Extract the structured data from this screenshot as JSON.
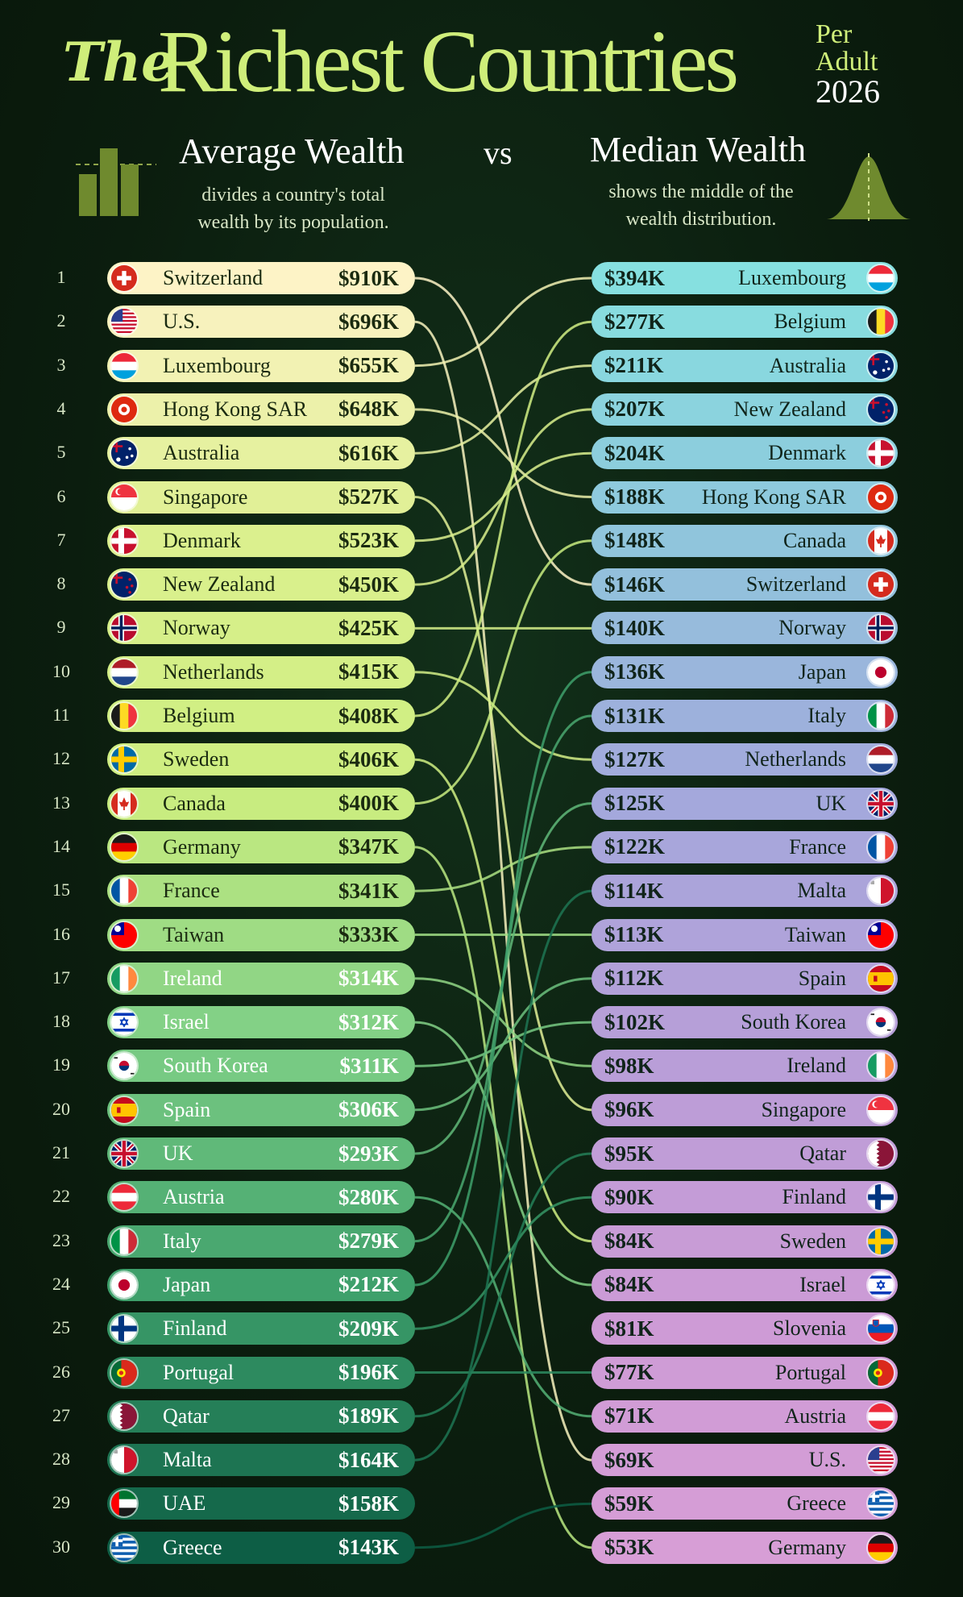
{
  "header": {
    "title_the": "The",
    "title_main": "Richest Countries",
    "title_per": "Per",
    "title_adult": "Adult",
    "title_year": "2026",
    "left_heading": "Average Wealth",
    "left_sub_1": "divides a country's total",
    "left_sub_2": "wealth by its population.",
    "vs": "vs",
    "right_heading": "Median Wealth",
    "right_sub_1": "shows the middle of the",
    "right_sub_2": "wealth distribution."
  },
  "colors": {
    "background": "#0c1e0e",
    "title": "#cfee7a",
    "left_top": "#fdf3c6",
    "left_bottom": "#0d5e45",
    "right_top": "#86e0e0",
    "right_bottom": "#d79ed6"
  },
  "chart_data": {
    "type": "slope",
    "left": {
      "label": "Average Wealth",
      "rows": [
        {
          "rank": "1",
          "country": "Switzerland",
          "value_label": "$910K",
          "value_k": 910,
          "flag": "switzerland"
        },
        {
          "rank": "2",
          "country": "U.S.",
          "value_label": "$696K",
          "value_k": 696,
          "flag": "us"
        },
        {
          "rank": "3",
          "country": "Luxembourg",
          "value_label": "$655K",
          "value_k": 655,
          "flag": "luxembourg"
        },
        {
          "rank": "4",
          "country": "Hong Kong SAR",
          "value_label": "$648K",
          "value_k": 648,
          "flag": "hongkong"
        },
        {
          "rank": "5",
          "country": "Australia",
          "value_label": "$616K",
          "value_k": 616,
          "flag": "australia"
        },
        {
          "rank": "6",
          "country": "Singapore",
          "value_label": "$527K",
          "value_k": 527,
          "flag": "singapore"
        },
        {
          "rank": "7",
          "country": "Denmark",
          "value_label": "$523K",
          "value_k": 523,
          "flag": "denmark"
        },
        {
          "rank": "8",
          "country": "New Zealand",
          "value_label": "$450K",
          "value_k": 450,
          "flag": "newzealand"
        },
        {
          "rank": "9",
          "country": "Norway",
          "value_label": "$425K",
          "value_k": 425,
          "flag": "norway"
        },
        {
          "rank": "10",
          "country": "Netherlands",
          "value_label": "$415K",
          "value_k": 415,
          "flag": "netherlands"
        },
        {
          "rank": "11",
          "country": "Belgium",
          "value_label": "$408K",
          "value_k": 408,
          "flag": "belgium"
        },
        {
          "rank": "12",
          "country": "Sweden",
          "value_label": "$406K",
          "value_k": 406,
          "flag": "sweden"
        },
        {
          "rank": "13",
          "country": "Canada",
          "value_label": "$400K",
          "value_k": 400,
          "flag": "canada"
        },
        {
          "rank": "14",
          "country": "Germany",
          "value_label": "$347K",
          "value_k": 347,
          "flag": "germany"
        },
        {
          "rank": "15",
          "country": "France",
          "value_label": "$341K",
          "value_k": 341,
          "flag": "france"
        },
        {
          "rank": "16",
          "country": "Taiwan",
          "value_label": "$333K",
          "value_k": 333,
          "flag": "taiwan"
        },
        {
          "rank": "17",
          "country": "Ireland",
          "value_label": "$314K",
          "value_k": 314,
          "flag": "ireland"
        },
        {
          "rank": "18",
          "country": "Israel",
          "value_label": "$312K",
          "value_k": 312,
          "flag": "israel"
        },
        {
          "rank": "19",
          "country": "South Korea",
          "value_label": "$311K",
          "value_k": 311,
          "flag": "southkorea"
        },
        {
          "rank": "20",
          "country": "Spain",
          "value_label": "$306K",
          "value_k": 306,
          "flag": "spain"
        },
        {
          "rank": "21",
          "country": "UK",
          "value_label": "$293K",
          "value_k": 293,
          "flag": "uk"
        },
        {
          "rank": "22",
          "country": "Austria",
          "value_label": "$280K",
          "value_k": 280,
          "flag": "austria"
        },
        {
          "rank": "23",
          "country": "Italy",
          "value_label": "$279K",
          "value_k": 279,
          "flag": "italy"
        },
        {
          "rank": "24",
          "country": "Japan",
          "value_label": "$212K",
          "value_k": 212,
          "flag": "japan"
        },
        {
          "rank": "25",
          "country": "Finland",
          "value_label": "$209K",
          "value_k": 209,
          "flag": "finland"
        },
        {
          "rank": "26",
          "country": "Portugal",
          "value_label": "$196K",
          "value_k": 196,
          "flag": "portugal"
        },
        {
          "rank": "27",
          "country": "Qatar",
          "value_label": "$189K",
          "value_k": 189,
          "flag": "qatar"
        },
        {
          "rank": "28",
          "country": "Malta",
          "value_label": "$164K",
          "value_k": 164,
          "flag": "malta"
        },
        {
          "rank": "29",
          "country": "UAE",
          "value_label": "$158K",
          "value_k": 158,
          "flag": "uae"
        },
        {
          "rank": "30",
          "country": "Greece",
          "value_label": "$143K",
          "value_k": 143,
          "flag": "greece"
        }
      ]
    },
    "right": {
      "label": "Median Wealth",
      "rows": [
        {
          "country": "Luxembourg",
          "value_label": "$394K",
          "value_k": 394,
          "flag": "luxembourg"
        },
        {
          "country": "Belgium",
          "value_label": "$277K",
          "value_k": 277,
          "flag": "belgium"
        },
        {
          "country": "Australia",
          "value_label": "$211K",
          "value_k": 211,
          "flag": "australia"
        },
        {
          "country": "New Zealand",
          "value_label": "$207K",
          "value_k": 207,
          "flag": "newzealand"
        },
        {
          "country": "Denmark",
          "value_label": "$204K",
          "value_k": 204,
          "flag": "denmark"
        },
        {
          "country": "Hong Kong SAR",
          "value_label": "$188K",
          "value_k": 188,
          "flag": "hongkong"
        },
        {
          "country": "Canada",
          "value_label": "$148K",
          "value_k": 148,
          "flag": "canada"
        },
        {
          "country": "Switzerland",
          "value_label": "$146K",
          "value_k": 146,
          "flag": "switzerland"
        },
        {
          "country": "Norway",
          "value_label": "$140K",
          "value_k": 140,
          "flag": "norway"
        },
        {
          "country": "Japan",
          "value_label": "$136K",
          "value_k": 136,
          "flag": "japan"
        },
        {
          "country": "Italy",
          "value_label": "$131K",
          "value_k": 131,
          "flag": "italy"
        },
        {
          "country": "Netherlands",
          "value_label": "$127K",
          "value_k": 127,
          "flag": "netherlands"
        },
        {
          "country": "UK",
          "value_label": "$125K",
          "value_k": 125,
          "flag": "uk"
        },
        {
          "country": "France",
          "value_label": "$122K",
          "value_k": 122,
          "flag": "france"
        },
        {
          "country": "Malta",
          "value_label": "$114K",
          "value_k": 114,
          "flag": "malta"
        },
        {
          "country": "Taiwan",
          "value_label": "$113K",
          "value_k": 113,
          "flag": "taiwan"
        },
        {
          "country": "Spain",
          "value_label": "$112K",
          "value_k": 112,
          "flag": "spain"
        },
        {
          "country": "South Korea",
          "value_label": "$102K",
          "value_k": 102,
          "flag": "southkorea"
        },
        {
          "country": "Ireland",
          "value_label": "$98K",
          "value_k": 98,
          "flag": "ireland"
        },
        {
          "country": "Singapore",
          "value_label": "$96K",
          "value_k": 96,
          "flag": "singapore"
        },
        {
          "country": "Qatar",
          "value_label": "$95K",
          "value_k": 95,
          "flag": "qatar"
        },
        {
          "country": "Finland",
          "value_label": "$90K",
          "value_k": 90,
          "flag": "finland"
        },
        {
          "country": "Sweden",
          "value_label": "$84K",
          "value_k": 84,
          "flag": "sweden"
        },
        {
          "country": "Israel",
          "value_label": "$84K",
          "value_k": 84,
          "flag": "israel"
        },
        {
          "country": "Slovenia",
          "value_label": "$81K",
          "value_k": 81,
          "flag": "slovenia"
        },
        {
          "country": "Portugal",
          "value_label": "$77K",
          "value_k": 77,
          "flag": "portugal"
        },
        {
          "country": "Austria",
          "value_label": "$71K",
          "value_k": 71,
          "flag": "austria"
        },
        {
          "country": "U.S.",
          "value_label": "$69K",
          "value_k": 69,
          "flag": "us"
        },
        {
          "country": "Greece",
          "value_label": "$59K",
          "value_k": 59,
          "flag": "greece"
        },
        {
          "country": "Germany",
          "value_label": "$53K",
          "value_k": 53,
          "flag": "germany"
        }
      ]
    }
  }
}
